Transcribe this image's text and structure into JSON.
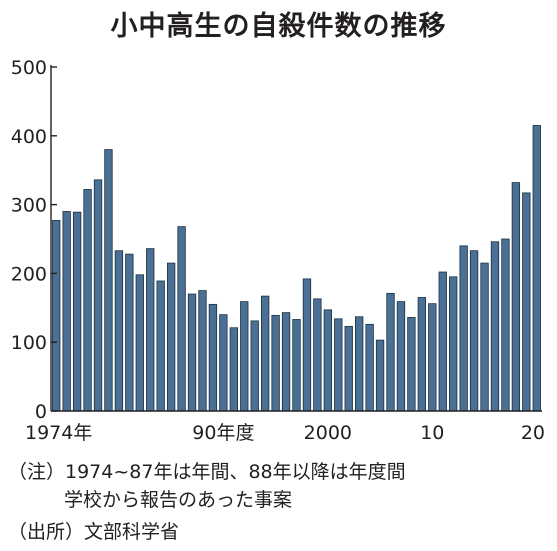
{
  "chart_data": {
    "type": "bar",
    "title": "小中高生の自殺件数の推移",
    "x": [
      1974,
      1975,
      1976,
      1977,
      1978,
      1979,
      1980,
      1981,
      1982,
      1983,
      1984,
      1985,
      1986,
      1987,
      1988,
      1989,
      1990,
      1991,
      1992,
      1993,
      1994,
      1995,
      1996,
      1997,
      1998,
      1999,
      2000,
      2001,
      2002,
      2003,
      2004,
      2005,
      2006,
      2007,
      2008,
      2009,
      2010,
      2011,
      2012,
      2013,
      2014,
      2015,
      2016,
      2017,
      2018,
      2019,
      2020
    ],
    "values": [
      277,
      290,
      289,
      322,
      336,
      380,
      233,
      228,
      198,
      236,
      189,
      215,
      268,
      170,
      175,
      155,
      140,
      121,
      159,
      131,
      167,
      139,
      143,
      133,
      192,
      163,
      147,
      134,
      123,
      137,
      126,
      103,
      171,
      159,
      136,
      165,
      156,
      202,
      195,
      240,
      233,
      215,
      246,
      250,
      332,
      317,
      415
    ],
    "x_tick_labels": [
      {
        "year": 1974,
        "label": "1974年"
      },
      {
        "year": 1990,
        "label": "90年度"
      },
      {
        "year": 2000,
        "label": "2000"
      },
      {
        "year": 2010,
        "label": "10"
      },
      {
        "year": 2020,
        "label": "20"
      }
    ],
    "y_ticks": [
      0,
      100,
      200,
      300,
      400,
      500
    ],
    "y_tick_labels": [
      "0",
      "100",
      "200",
      "300",
      "400",
      "500"
    ],
    "ylim": [
      0,
      500
    ],
    "grid": false,
    "bar_color": "#4a7195",
    "bar_edge_color": "#1c2f40"
  },
  "notes": {
    "line1": "（注）1974~87年は年間、88年以降は年度間",
    "line2": "学校から報告のあった事案",
    "source": "（出所）文部科学省"
  }
}
